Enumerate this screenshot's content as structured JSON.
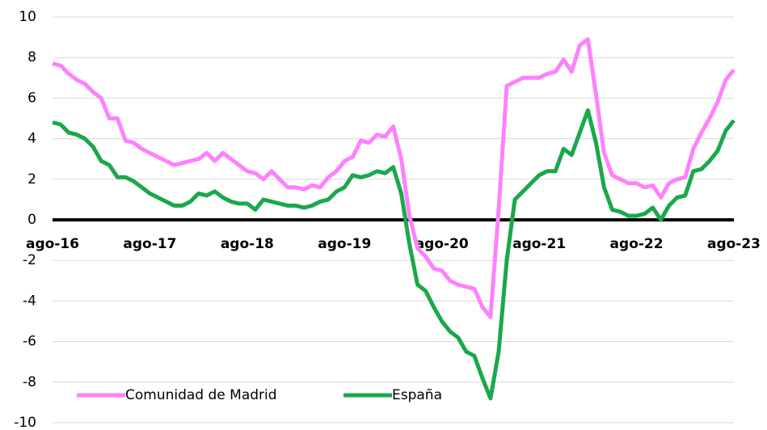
{
  "chart_data": {
    "type": "line",
    "categories": [
      "ago-16",
      null,
      null,
      null,
      null,
      null,
      null,
      null,
      null,
      null,
      null,
      null,
      "ago-17",
      null,
      null,
      null,
      null,
      null,
      null,
      null,
      null,
      null,
      null,
      null,
      "ago-18",
      null,
      null,
      null,
      null,
      null,
      null,
      null,
      null,
      null,
      null,
      null,
      "ago-19",
      null,
      null,
      null,
      null,
      null,
      null,
      null,
      null,
      null,
      null,
      null,
      "ago-20",
      null,
      null,
      null,
      null,
      null,
      null,
      null,
      null,
      null,
      null,
      null,
      "ago-21",
      null,
      null,
      null,
      null,
      null,
      null,
      null,
      null,
      null,
      null,
      null,
      "ago-22",
      null,
      null,
      null,
      null,
      null,
      null,
      null,
      null,
      null,
      null,
      null,
      "ago-23"
    ],
    "series": [
      {
        "name": "Comunidad de Madrid",
        "color": "#ff80ff",
        "values": [
          7.7,
          7.6,
          7.2,
          6.9,
          6.7,
          6.3,
          6.0,
          5.0,
          5.0,
          3.9,
          3.8,
          3.5,
          3.3,
          3.1,
          2.9,
          2.7,
          2.8,
          2.9,
          3.0,
          3.3,
          2.9,
          3.3,
          3.0,
          2.7,
          2.4,
          2.3,
          2.0,
          2.4,
          2.0,
          1.6,
          1.6,
          1.5,
          1.7,
          1.6,
          2.1,
          2.4,
          2.9,
          3.1,
          3.9,
          3.8,
          4.2,
          4.1,
          4.6,
          3.0,
          0.2,
          -1.4,
          -1.8,
          -2.4,
          -2.5,
          -3.0,
          -3.2,
          -3.3,
          -3.4,
          -4.3,
          -4.8,
          0.5,
          6.6,
          6.8,
          7.0,
          7.0,
          7.0,
          7.2,
          7.3,
          7.9,
          7.3,
          8.6,
          8.9,
          6.2,
          3.3,
          2.2,
          2.0,
          1.8,
          1.8,
          1.6,
          1.7,
          1.1,
          1.8,
          2.0,
          2.1,
          3.5,
          4.3,
          5.0,
          5.8,
          6.9,
          7.4
        ]
      },
      {
        "name": "España",
        "color": "#1aa84a",
        "values": [
          4.8,
          4.7,
          4.3,
          4.2,
          4.0,
          3.6,
          2.9,
          2.7,
          2.1,
          2.1,
          1.9,
          1.6,
          1.3,
          1.1,
          0.9,
          0.7,
          0.7,
          0.9,
          1.3,
          1.2,
          1.4,
          1.1,
          0.9,
          0.8,
          0.8,
          0.5,
          1.0,
          0.9,
          0.8,
          0.7,
          0.7,
          0.6,
          0.7,
          0.9,
          1.0,
          1.4,
          1.6,
          2.2,
          2.1,
          2.2,
          2.4,
          2.3,
          2.6,
          1.3,
          -1.2,
          -3.2,
          -3.5,
          -4.3,
          -5.0,
          -5.5,
          -5.8,
          -6.5,
          -6.7,
          -7.8,
          -8.8,
          -6.5,
          -2.0,
          1.0,
          1.4,
          1.8,
          2.2,
          2.4,
          2.4,
          3.5,
          3.2,
          4.3,
          5.4,
          3.8,
          1.6,
          0.5,
          0.4,
          0.2,
          0.2,
          0.3,
          0.6,
          0.0,
          0.7,
          1.1,
          1.2,
          2.4,
          2.5,
          2.9,
          3.4,
          4.4,
          4.9
        ]
      }
    ],
    "ylim": [
      -10,
      10
    ],
    "yticks": [
      -10,
      -8,
      -6,
      -4,
      -2,
      0,
      2,
      4,
      6,
      8,
      10
    ],
    "grid": true,
    "legend": "lower left"
  }
}
